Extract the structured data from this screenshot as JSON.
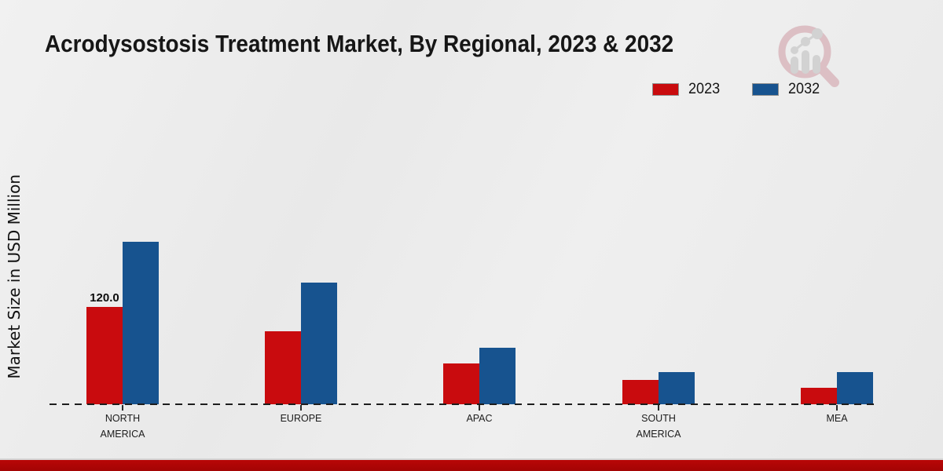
{
  "page": {
    "title": "Acrodysostosis Treatment Market, By Regional, 2023 & 2032"
  },
  "legend": {
    "items": [
      {
        "label": "2023",
        "color": "#c90b0e"
      },
      {
        "label": "2032",
        "color": "#17538f"
      }
    ]
  },
  "chart_data": {
    "type": "bar",
    "title": "Acrodysostosis Treatment Market, By Regional, 2023 & 2032",
    "xlabel": "",
    "ylabel": "Market Size in USD Million",
    "categories": [
      "NORTH AMERICA",
      "EUROPE",
      "APAC",
      "SOUTH AMERICA",
      "MEA"
    ],
    "series": [
      {
        "name": "2023",
        "color": "#c90b0e",
        "values": [
          120.0,
          90,
          50,
          30,
          20
        ],
        "data_labels": [
          "120.0",
          "",
          "",
          "",
          ""
        ]
      },
      {
        "name": "2032",
        "color": "#17538f",
        "values": [
          200,
          150,
          70,
          40,
          40
        ]
      }
    ],
    "ylim": [
      0,
      250
    ],
    "grid": false,
    "legend_position": "top-right",
    "baseline_style": "dashed",
    "units": "USD Million"
  },
  "branding": {
    "logo": "magnifier-bar-chart-logo",
    "footer_bar_color": "#b90606"
  }
}
